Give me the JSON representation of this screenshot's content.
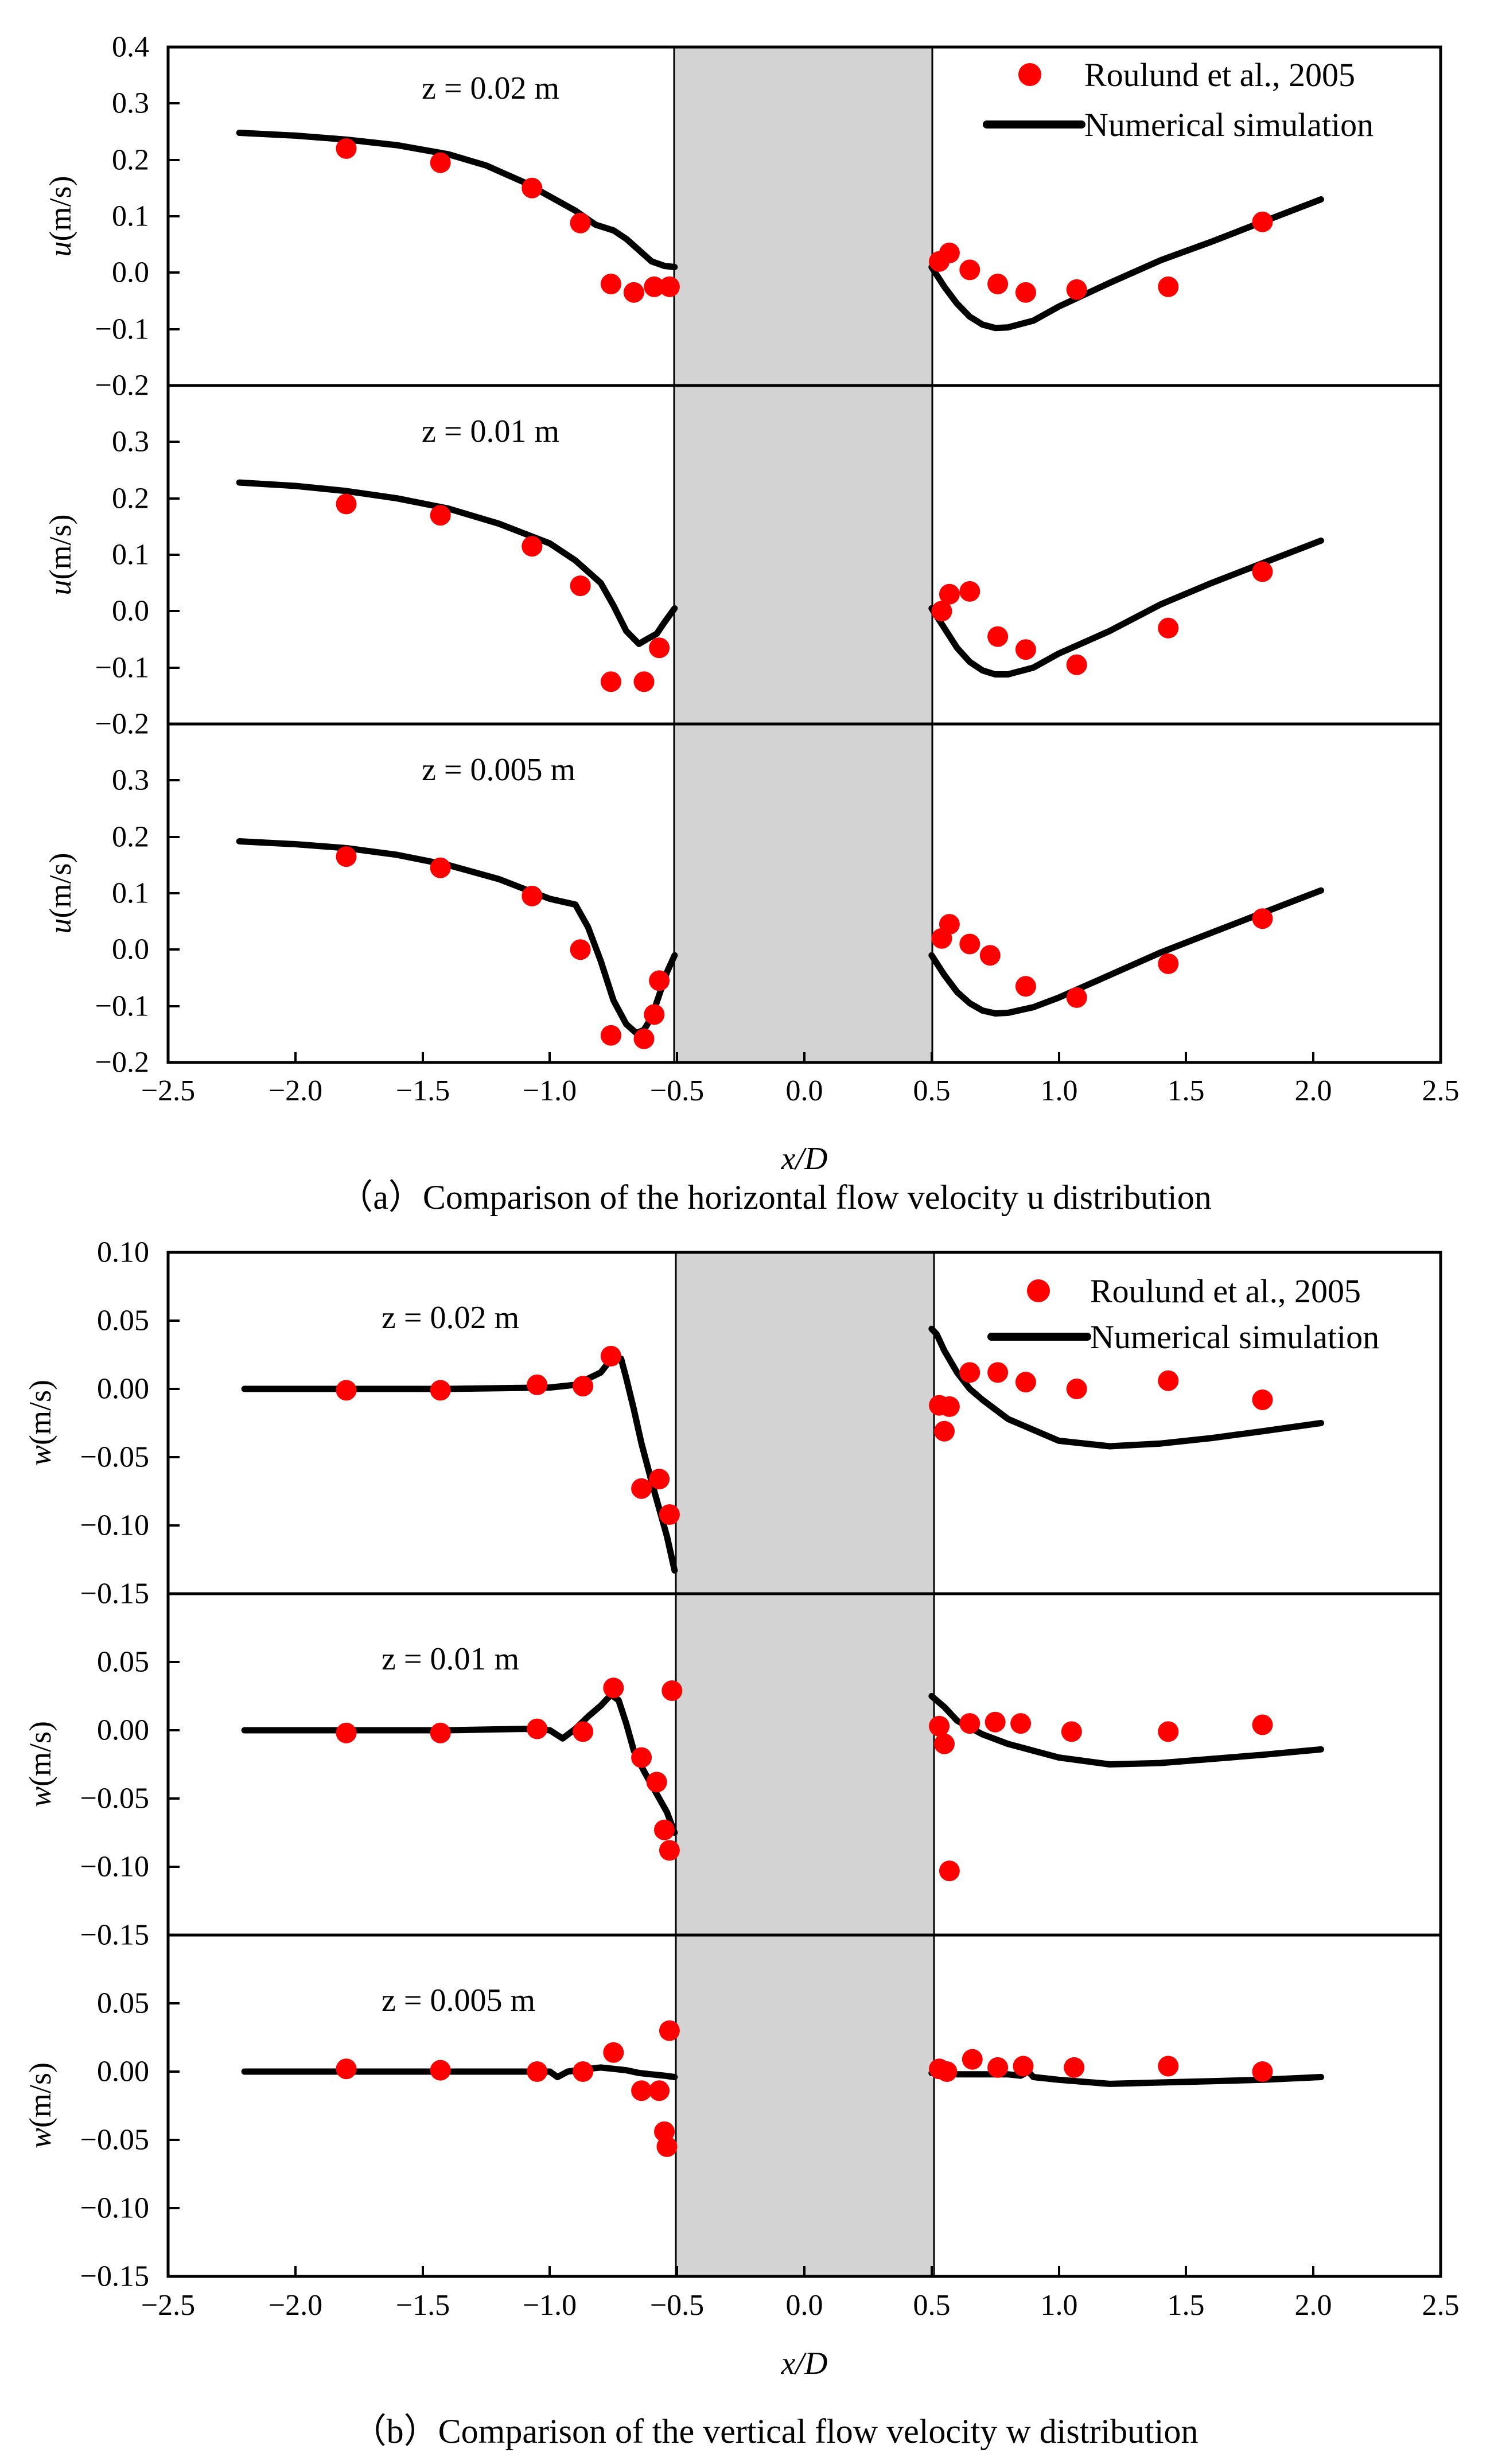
{
  "chart_data": [
    {
      "type": "scatter+line",
      "caption": "（a）Comparison of the horizontal flow velocity  u  distribution",
      "xlabel": "x/D",
      "xlim": [
        -2.5,
        2.5
      ],
      "xticks": [
        "−2.5",
        "−2.0",
        "−1.5",
        "−1.0",
        "−0.5",
        "0.0",
        "0.5",
        "1.0",
        "1.5",
        "2.0",
        "2.5"
      ],
      "pile_region": [
        -0.5,
        0.5
      ],
      "legend": {
        "markers": "Roulund et al., 2005",
        "line": "Numerical simulation"
      },
      "panels": [
        {
          "label": "z = 0.02 m",
          "ylabel_var": "u",
          "ylabel_unit": "(m/s)",
          "ylim": [
            -0.2,
            0.4
          ],
          "yticks": [
            "0.4",
            "0.3",
            "0.2",
            "0.1",
            "0.0",
            "−0.1",
            "−0.2"
          ],
          "markers_x": [
            -1.8,
            -1.43,
            -1.07,
            -0.88,
            -0.76,
            -0.67,
            -0.59,
            -0.53,
            0.53,
            0.57,
            0.65,
            0.76,
            0.87,
            1.07,
            1.43,
            1.8
          ],
          "markers_y": [
            0.22,
            0.195,
            0.15,
            0.088,
            -0.02,
            -0.035,
            -0.025,
            -0.025,
            0.02,
            0.035,
            0.005,
            -0.02,
            -0.035,
            -0.03,
            -0.025,
            0.09
          ],
          "line_left_x": [
            -2.22,
            -2.0,
            -1.8,
            -1.6,
            -1.4,
            -1.25,
            -1.1,
            -1.0,
            -0.9,
            -0.82,
            -0.75,
            -0.7,
            -0.65,
            -0.6,
            -0.55,
            -0.51
          ],
          "line_left_y": [
            0.248,
            0.243,
            0.236,
            0.226,
            0.21,
            0.19,
            0.16,
            0.135,
            0.11,
            0.085,
            0.075,
            0.06,
            0.04,
            0.02,
            0.012,
            0.01
          ],
          "line_right_x": [
            0.5,
            0.55,
            0.6,
            0.65,
            0.7,
            0.75,
            0.8,
            0.9,
            1.0,
            1.2,
            1.4,
            1.6,
            1.8,
            2.03
          ],
          "line_right_y": [
            0.01,
            -0.025,
            -0.055,
            -0.078,
            -0.092,
            -0.098,
            -0.097,
            -0.085,
            -0.06,
            -0.018,
            0.022,
            0.055,
            0.09,
            0.13
          ]
        },
        {
          "label": "z = 0.01 m",
          "ylabel_var": "u",
          "ylabel_unit": "(m/s)",
          "ylim": [
            -0.2,
            0.4
          ],
          "yticks": [
            "0.3",
            "0.2",
            "0.1",
            "0.0",
            "−0.1",
            "−0.2"
          ],
          "markers_x": [
            -1.8,
            -1.43,
            -1.07,
            -0.88,
            -0.76,
            -0.63,
            -0.57,
            0.54,
            0.57,
            0.65,
            0.76,
            0.87,
            1.07,
            1.43,
            1.8
          ],
          "markers_y": [
            0.19,
            0.17,
            0.115,
            0.045,
            -0.125,
            -0.125,
            -0.065,
            0.0,
            0.03,
            0.035,
            -0.045,
            -0.068,
            -0.095,
            -0.03,
            0.07
          ],
          "line_left_x": [
            -2.22,
            -2.0,
            -1.8,
            -1.6,
            -1.4,
            -1.2,
            -1.0,
            -0.9,
            -0.8,
            -0.75,
            -0.7,
            -0.65,
            -0.62,
            -0.58,
            -0.55,
            -0.51
          ],
          "line_left_y": [
            0.228,
            0.222,
            0.213,
            0.2,
            0.182,
            0.155,
            0.12,
            0.09,
            0.05,
            0.01,
            -0.035,
            -0.058,
            -0.05,
            -0.04,
            -0.02,
            0.005
          ],
          "line_right_x": [
            0.5,
            0.55,
            0.6,
            0.65,
            0.7,
            0.75,
            0.8,
            0.9,
            1.0,
            1.2,
            1.4,
            1.6,
            1.8,
            2.03
          ],
          "line_right_y": [
            0.005,
            -0.03,
            -0.065,
            -0.09,
            -0.105,
            -0.112,
            -0.112,
            -0.1,
            -0.075,
            -0.035,
            0.012,
            0.05,
            0.085,
            0.125
          ]
        },
        {
          "label": "z = 0.005 m",
          "ylabel_var": "u",
          "ylabel_unit": "(m/s)",
          "ylim": [
            -0.2,
            0.4
          ],
          "yticks": [
            "0.3",
            "0.2",
            "0.1",
            "0.0",
            "−0.1",
            "−0.2"
          ],
          "markers_x": [
            -1.8,
            -1.43,
            -1.07,
            -0.88,
            -0.76,
            -0.63,
            -0.59,
            -0.57,
            0.54,
            0.57,
            0.65,
            0.73,
            0.87,
            1.07,
            1.43,
            1.8
          ],
          "markers_y": [
            0.165,
            0.145,
            0.095,
            0.0,
            -0.152,
            -0.158,
            -0.115,
            -0.055,
            0.02,
            0.045,
            0.01,
            -0.01,
            -0.065,
            -0.085,
            -0.025,
            0.055
          ],
          "line_left_x": [
            -2.22,
            -2.0,
            -1.8,
            -1.6,
            -1.4,
            -1.2,
            -1.0,
            -0.9,
            -0.85,
            -0.8,
            -0.75,
            -0.7,
            -0.66,
            -0.63,
            -0.6,
            -0.57,
            -0.54,
            -0.51
          ],
          "line_left_y": [
            0.192,
            0.187,
            0.18,
            0.168,
            0.15,
            0.125,
            0.09,
            0.08,
            0.04,
            -0.02,
            -0.09,
            -0.132,
            -0.148,
            -0.142,
            -0.12,
            -0.08,
            -0.04,
            -0.01
          ],
          "line_right_x": [
            0.5,
            0.55,
            0.6,
            0.65,
            0.7,
            0.75,
            0.8,
            0.9,
            1.0,
            1.2,
            1.4,
            1.6,
            1.8,
            2.03
          ],
          "line_right_y": [
            -0.01,
            -0.045,
            -0.075,
            -0.095,
            -0.108,
            -0.113,
            -0.112,
            -0.102,
            -0.085,
            -0.045,
            -0.005,
            0.03,
            0.065,
            0.105
          ]
        }
      ]
    },
    {
      "type": "scatter+line",
      "caption": "（b）Comparison of the vertical flow velocity  w  distribution",
      "xlabel": "x/D",
      "xlim": [
        -2.5,
        2.5
      ],
      "xticks": [
        "−2.5",
        "−2.0",
        "−1.5",
        "−1.0",
        "−0.5",
        "0.0",
        "0.5",
        "1.0",
        "1.5",
        "2.0",
        "2.5"
      ],
      "pile_region": [
        -0.5,
        0.5
      ],
      "legend": {
        "markers": "Roulund et al., 2005",
        "line": "Numerical simulation"
      },
      "panels": [
        {
          "label": "z = 0.02 m",
          "ylabel_var": "w",
          "ylabel_unit": "(m/s)",
          "ylim": [
            -0.15,
            0.1
          ],
          "yticks": [
            "0.10",
            "0.05",
            "0.00",
            "−0.05",
            "−0.10",
            "−0.15"
          ],
          "markers_x": [
            -1.8,
            -1.43,
            -1.05,
            -0.87,
            -0.76,
            -0.64,
            -0.57,
            -0.53,
            0.53,
            0.55,
            0.57,
            0.65,
            0.76,
            0.87,
            1.07,
            1.43,
            1.8
          ],
          "markers_y": [
            -0.001,
            -0.001,
            0.003,
            0.002,
            0.024,
            -0.073,
            -0.066,
            -0.092,
            -0.012,
            -0.031,
            -0.013,
            0.012,
            0.012,
            0.005,
            0.0,
            0.006,
            -0.008
          ],
          "line_left_x": [
            -2.2,
            -1.8,
            -1.4,
            -1.0,
            -0.9,
            -0.8,
            -0.75,
            -0.72,
            -0.7,
            -0.67,
            -0.64,
            -0.6,
            -0.57,
            -0.54,
            -0.51
          ],
          "line_left_y": [
            0.0,
            0.0,
            0.0,
            0.001,
            0.003,
            0.012,
            0.024,
            0.022,
            0.008,
            -0.015,
            -0.04,
            -0.068,
            -0.088,
            -0.108,
            -0.133
          ],
          "line_right_x": [
            0.5,
            0.52,
            0.55,
            0.6,
            0.65,
            0.7,
            0.75,
            0.8,
            0.9,
            1.0,
            1.2,
            1.4,
            1.6,
            1.8,
            2.03
          ],
          "line_right_y": [
            0.044,
            0.04,
            0.028,
            0.012,
            0.0,
            -0.008,
            -0.015,
            -0.022,
            -0.03,
            -0.038,
            -0.042,
            -0.04,
            -0.036,
            -0.031,
            -0.025
          ]
        },
        {
          "label": "z = 0.01 m",
          "ylabel_var": "w",
          "ylabel_unit": "(m/s)",
          "ylim": [
            -0.15,
            0.1
          ],
          "yticks": [
            "0.05",
            "0.00",
            "−0.05",
            "−0.10",
            "−0.15"
          ],
          "markers_x": [
            -1.8,
            -1.43,
            -1.05,
            -0.87,
            -0.75,
            -0.64,
            -0.58,
            -0.55,
            -0.53,
            -0.52,
            0.53,
            0.55,
            0.57,
            0.65,
            0.75,
            0.85,
            1.05,
            1.43,
            1.8
          ],
          "markers_y": [
            -0.002,
            -0.002,
            0.001,
            -0.001,
            0.031,
            -0.02,
            -0.038,
            -0.073,
            -0.088,
            0.029,
            0.003,
            -0.01,
            -0.103,
            0.005,
            0.006,
            0.005,
            -0.001,
            -0.001,
            0.004
          ],
          "line_left_x": [
            -2.2,
            -1.8,
            -1.4,
            -1.1,
            -1.0,
            -0.95,
            -0.9,
            -0.85,
            -0.8,
            -0.76,
            -0.73,
            -0.7,
            -0.67,
            -0.63,
            -0.6,
            -0.57,
            -0.54,
            -0.51
          ],
          "line_left_y": [
            0.0,
            0.0,
            0.0,
            0.001,
            0.0,
            -0.006,
            0.001,
            0.01,
            0.018,
            0.026,
            0.022,
            0.005,
            -0.015,
            -0.03,
            -0.04,
            -0.05,
            -0.06,
            -0.075
          ],
          "line_right_x": [
            0.5,
            0.55,
            0.6,
            0.7,
            0.8,
            0.9,
            1.0,
            1.2,
            1.4,
            1.6,
            1.8,
            2.03
          ],
          "line_right_y": [
            0.025,
            0.017,
            0.007,
            -0.003,
            -0.01,
            -0.015,
            -0.02,
            -0.025,
            -0.024,
            -0.021,
            -0.018,
            -0.014
          ]
        },
        {
          "label": "z = 0.005 m",
          "ylabel_var": "w",
          "ylabel_unit": "(m/s)",
          "ylim": [
            -0.15,
            0.1
          ],
          "yticks": [
            "0.05",
            "0.00",
            "−0.05",
            "−0.10",
            "−0.15"
          ],
          "markers_x": [
            -1.8,
            -1.43,
            -1.05,
            -0.87,
            -0.75,
            -0.64,
            -0.57,
            -0.55,
            -0.54,
            -0.53,
            0.53,
            0.56,
            0.66,
            0.76,
            0.86,
            1.06,
            1.43,
            1.8
          ],
          "markers_y": [
            0.002,
            0.001,
            0.0,
            0.0,
            0.014,
            -0.014,
            -0.014,
            -0.044,
            -0.055,
            0.03,
            0.002,
            0.0,
            0.009,
            0.003,
            0.004,
            0.003,
            0.004,
            0.0
          ],
          "line_left_x": [
            -2.2,
            -1.8,
            -1.4,
            -1.1,
            -1.0,
            -0.97,
            -0.93,
            -0.85,
            -0.8,
            -0.75,
            -0.7,
            -0.65,
            -0.6,
            -0.55,
            -0.51
          ],
          "line_left_y": [
            0.0,
            0.0,
            0.0,
            0.0,
            0.0,
            -0.004,
            0.0,
            0.002,
            0.003,
            0.002,
            0.001,
            -0.001,
            -0.002,
            -0.003,
            -0.004
          ],
          "line_right_x": [
            0.5,
            0.6,
            0.7,
            0.8,
            0.85,
            0.88,
            0.9,
            1.0,
            1.2,
            1.4,
            1.6,
            1.8,
            2.03
          ],
          "line_right_y": [
            -0.001,
            -0.002,
            -0.002,
            -0.002,
            -0.003,
            0.0,
            -0.004,
            -0.006,
            -0.009,
            -0.008,
            -0.007,
            -0.006,
            -0.004
          ]
        }
      ]
    }
  ]
}
